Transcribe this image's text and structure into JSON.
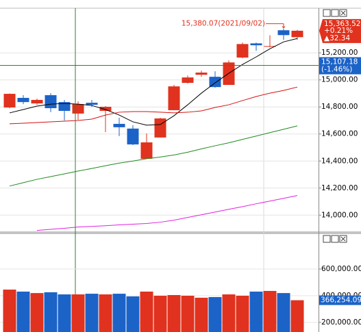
{
  "chart_data": [
    {
      "type": "candlestick",
      "open": [
        14796,
        14867,
        14826,
        14887,
        14836,
        14751,
        14831,
        14771,
        14675,
        14640,
        14417,
        14574,
        14776,
        14978,
        15038,
        15023,
        14963,
        15165,
        15270,
        15245,
        15367,
        15316
      ],
      "high": [
        14900,
        14887,
        14862,
        14902,
        14852,
        14841,
        14852,
        14806,
        14720,
        14665,
        14604,
        14720,
        14963,
        15033,
        15069,
        15064,
        15144,
        15276,
        15276,
        15330,
        15380.07,
        15370
      ],
      "low": [
        14790,
        14821,
        14816,
        14761,
        14700,
        14705,
        14801,
        14614,
        14584,
        14518,
        14417,
        14574,
        14776,
        14973,
        15023,
        14942,
        14963,
        15160,
        15215,
        15240,
        15296,
        15296
      ],
      "close": [
        14897,
        14836,
        14852,
        14791,
        14771,
        14821,
        14816,
        14801,
        14650,
        14523,
        14538,
        14715,
        14952,
        15018,
        15054,
        14947,
        15129,
        15265,
        15256,
        15250,
        15331.18,
        15363.52
      ],
      "up_color": "#e0321e",
      "down_color": "#1c63c8",
      "series": [
        {
          "color": "#000000",
          "values": [
            14756,
            14781,
            14806,
            14821,
            14826,
            14821,
            14811,
            14781,
            14740,
            14690,
            14665,
            14670,
            14735,
            14816,
            14902,
            14978,
            15049,
            15114,
            15170,
            15230,
            15281,
            15306
          ]
        },
        {
          "color": "#d41010",
          "values": [
            14675,
            14680,
            14685,
            14690,
            14695,
            14700,
            14710,
            14740,
            14761,
            14766,
            14766,
            14761,
            14756,
            14761,
            14771,
            14796,
            14816,
            14847,
            14877,
            14902,
            14922,
            14947
          ]
        },
        {
          "color": "#1e8a1e",
          "values": [
            14215,
            14240,
            14265,
            14285,
            14305,
            14326,
            14345,
            14365,
            14385,
            14400,
            14417,
            14430,
            14445,
            14465,
            14490,
            14513,
            14535,
            14560,
            14585,
            14610,
            14635,
            14660
          ]
        },
        {
          "color": "#e020e0",
          "values": [
            null,
            null,
            13887,
            13895,
            13903,
            13912,
            13917,
            13922,
            13928,
            13933,
            13938,
            13948,
            13963,
            13983,
            14003,
            14023,
            14043,
            14063,
            14084,
            14104,
            14124,
            14145
          ]
        }
      ],
      "ylim": [
        13880,
        15530
      ],
      "yticks": [
        {
          "value": 14000,
          "label": "14,000.00"
        },
        {
          "value": 14200,
          "label": "14,200.00"
        },
        {
          "value": 14400,
          "label": "14,400.00"
        },
        {
          "value": 14600,
          "label": "14,600.00"
        },
        {
          "value": 14800,
          "label": "14,800.00"
        },
        {
          "value": 15000,
          "label": "15,000.00"
        },
        {
          "value": 15200,
          "label": "15,200.00"
        }
      ],
      "grid": true,
      "high_marker": {
        "index": 20,
        "value": 15380.07,
        "label": "15,380.07(2021/09/02)"
      },
      "last_price": {
        "value": 15363.52,
        "label": "15,363.52",
        "change_pct": {
          "value": 0.21,
          "label": "+0.21%"
        },
        "change": {
          "value": 32.34,
          "label": "▲32.34"
        }
      },
      "crosshair": {
        "index": 5,
        "value": 15107.18,
        "label": "15,107.18",
        "change_pct": {
          "value": -1.46,
          "label": "(-1.46%)"
        }
      }
    },
    {
      "type": "bar",
      "values": [
        446000,
        431000,
        420000,
        426000,
        410000,
        410000,
        415000,
        410000,
        415000,
        395000,
        431000,
        400000,
        405000,
        400000,
        385000,
        390000,
        410000,
        400000,
        431000,
        436000,
        420000,
        366254.09
      ],
      "ylim": [
        128000,
        862000
      ],
      "yticks": [
        {
          "value": 200000,
          "label": "200,000.00"
        },
        {
          "value": 400000,
          "label": "400,000.00"
        },
        {
          "value": 600000,
          "label": "600,000.00"
        }
      ],
      "grid": true,
      "last_value": {
        "value": 366254.09,
        "label": "366,254.09"
      }
    }
  ]
}
